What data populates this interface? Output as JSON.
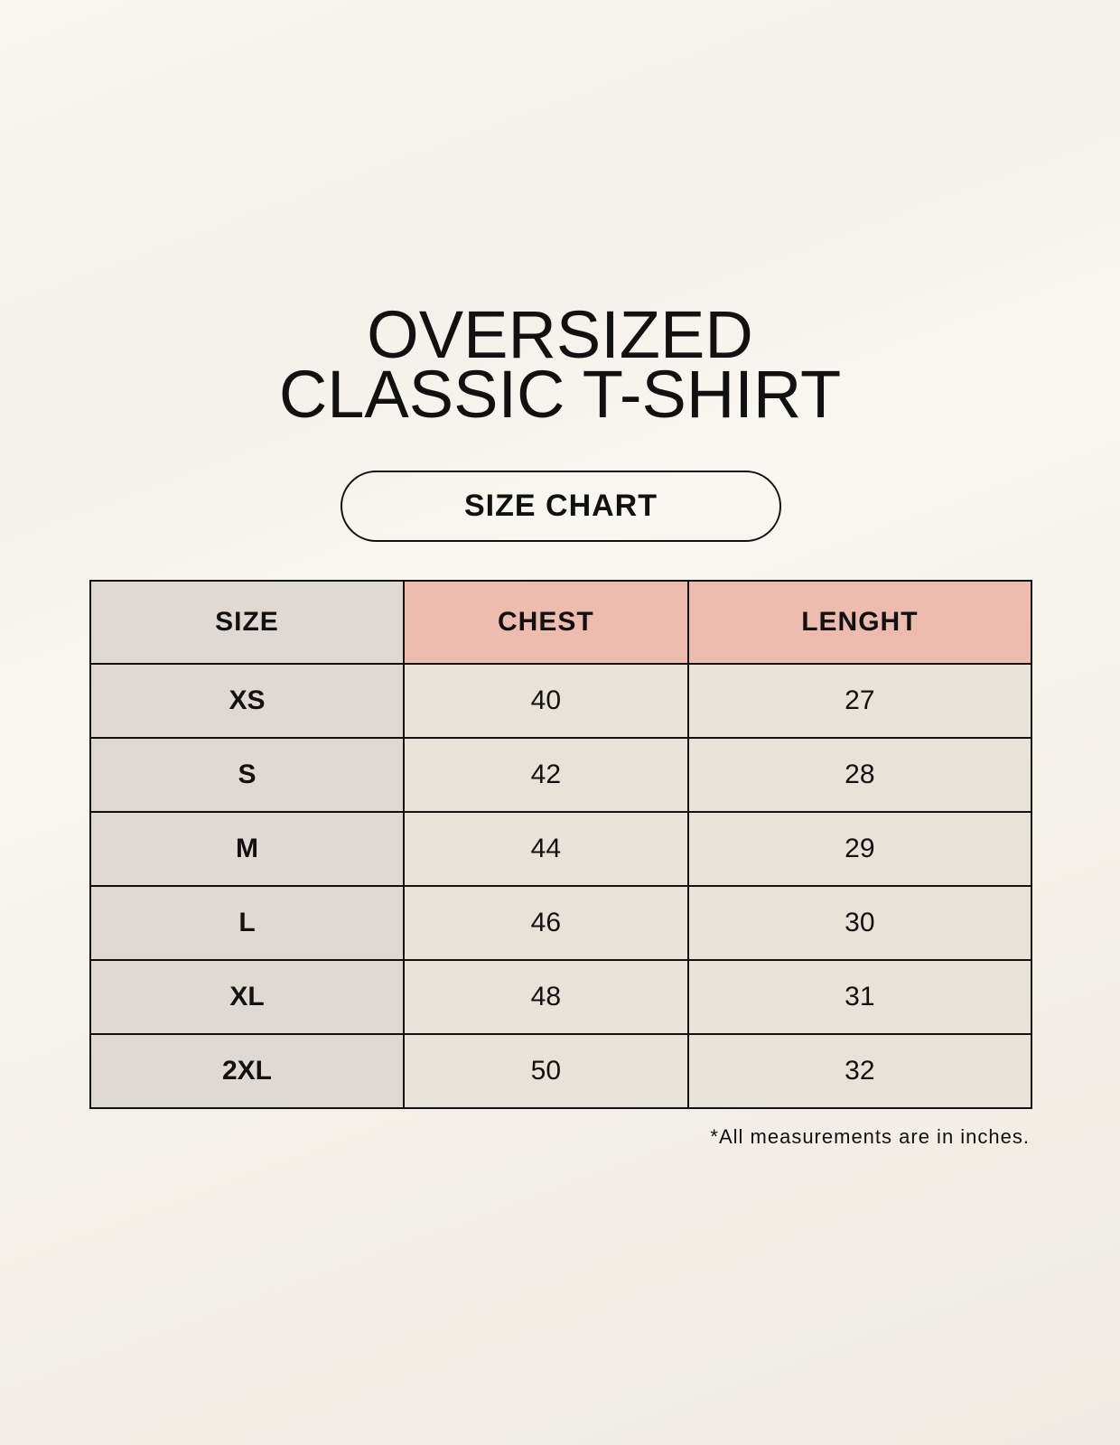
{
  "title": {
    "line1": "OVERSIZED",
    "line2": "CLASSIC T-SHIRT"
  },
  "subtitle": "SIZE CHART",
  "colors": {
    "size_column": "#e0d9d3",
    "header_accent": "#edbcae",
    "cells": "#e9e2d8"
  },
  "table": {
    "headers": [
      "SIZE",
      "CHEST",
      "LENGHT"
    ],
    "rows": [
      [
        "XS",
        "40",
        "27"
      ],
      [
        "S",
        "42",
        "28"
      ],
      [
        "M",
        "44",
        "29"
      ],
      [
        "L",
        "46",
        "30"
      ],
      [
        "XL",
        "48",
        "31"
      ],
      [
        "2XL",
        "50",
        "32"
      ]
    ]
  },
  "footnote": "*All measurements are in inches."
}
